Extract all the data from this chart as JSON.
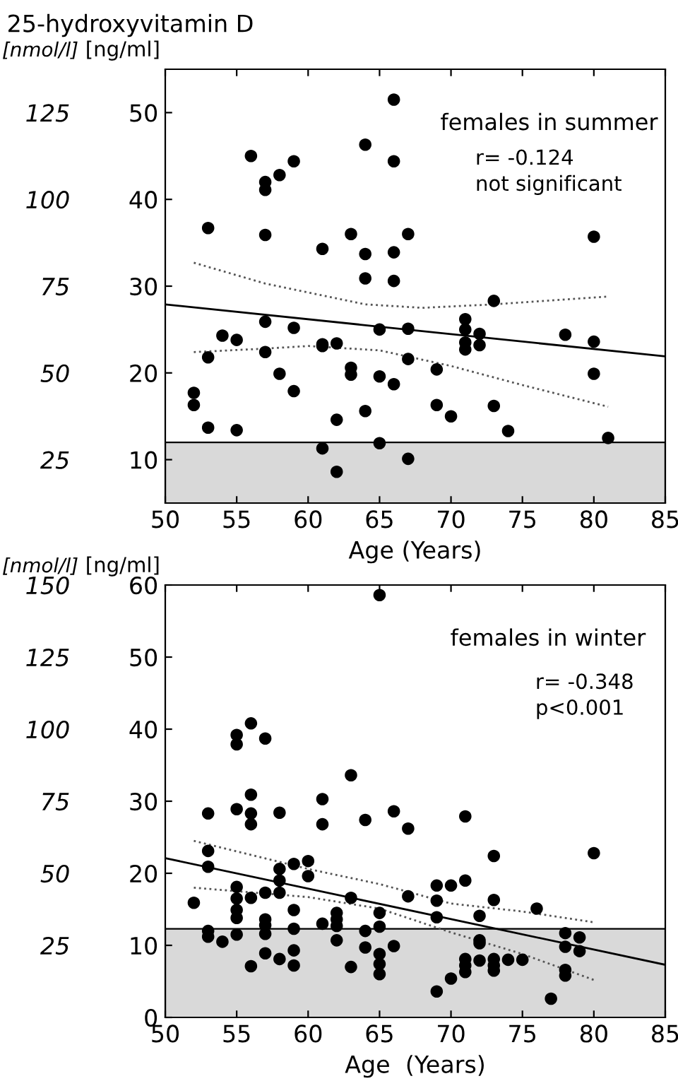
{
  "chart_data": [
    {
      "type": "scatter",
      "title": "25-hydroxyvitamin D",
      "xlabel": "Age (Years)",
      "ylabel": "[ng/ml]",
      "y2label": "[nmol/l]",
      "xlim": [
        50,
        85
      ],
      "xticks": [
        50,
        55,
        60,
        65,
        70,
        75,
        80,
        85
      ],
      "ylim": [
        5,
        55
      ],
      "yticks": [
        10,
        20,
        30,
        40,
        50
      ],
      "y2lim": [
        12.5,
        137.5
      ],
      "y2ticks": [
        25,
        50,
        75,
        100,
        125
      ],
      "grid": false,
      "legend": false,
      "annotations": [
        "females in summer",
        "r= -0.124",
        "not significant"
      ],
      "bands": [
        {
          "axis": "y",
          "from": 5,
          "to": 12,
          "color": "#d9d9d9"
        }
      ],
      "series": [
        {
          "color": "#000000",
          "marker": "circle",
          "x": [
            66,
            64,
            66,
            56,
            59,
            58,
            57,
            57,
            53,
            57,
            63,
            67,
            80,
            61,
            64,
            66,
            64,
            66,
            73,
            57,
            71,
            71,
            65,
            67,
            59,
            54,
            55,
            78,
            72,
            80,
            61,
            61,
            62,
            71,
            71,
            72,
            57,
            53,
            67,
            63,
            63,
            58,
            69,
            65,
            66,
            80,
            52,
            59,
            52,
            69,
            73,
            64,
            70,
            62,
            53,
            55,
            74,
            81,
            65,
            61,
            67,
            62
          ],
          "values": [
            51.5,
            46.3,
            44.4,
            45.0,
            44.4,
            42.8,
            42.0,
            41.1,
            36.7,
            35.9,
            36.0,
            36.0,
            35.7,
            34.3,
            33.7,
            33.9,
            30.9,
            30.6,
            28.3,
            25.9,
            26.2,
            25.0,
            25.0,
            25.1,
            25.2,
            24.3,
            23.8,
            24.4,
            24.5,
            23.6,
            23.3,
            23.1,
            23.4,
            23.5,
            22.7,
            23.2,
            22.4,
            21.8,
            21.6,
            20.6,
            19.8,
            19.9,
            20.4,
            19.6,
            18.7,
            19.9,
            17.7,
            17.9,
            16.3,
            16.3,
            16.2,
            15.6,
            15.0,
            14.6,
            13.7,
            13.4,
            13.3,
            12.5,
            11.9,
            11.3,
            10.1,
            8.6
          ]
        },
        {
          "type": "line",
          "color": "#000000",
          "line_style": "solid",
          "x": [
            50,
            85
          ],
          "values": [
            27.9,
            21.9
          ]
        },
        {
          "type": "line",
          "color": "#555555",
          "line_style": "dotted",
          "x": [
            52,
            57,
            64,
            68,
            73,
            81
          ],
          "values": [
            32.7,
            30.3,
            27.9,
            27.5,
            27.9,
            28.8
          ]
        },
        {
          "type": "line",
          "color": "#555555",
          "line_style": "dotted",
          "x": [
            52,
            57,
            60,
            65,
            70,
            75,
            81
          ],
          "values": [
            22.4,
            22.8,
            23.1,
            22.6,
            20.8,
            18.6,
            16.1
          ]
        }
      ]
    },
    {
      "type": "scatter",
      "xlabel": "Age  (Years)",
      "ylabel": "[ng/ml]",
      "y2label": "[nmol/l]",
      "xlim": [
        50,
        85
      ],
      "xticks": [
        50,
        55,
        60,
        65,
        70,
        75,
        80,
        85
      ],
      "ylim": [
        0,
        60
      ],
      "yticks": [
        0,
        10,
        20,
        30,
        40,
        50,
        60
      ],
      "y2lim": [
        0,
        150
      ],
      "y2ticks": [
        25,
        50,
        75,
        100,
        125,
        150
      ],
      "grid": false,
      "legend": false,
      "annotations": [
        "females in winter",
        "r= -0.348",
        "p<0.001"
      ],
      "bands": [
        {
          "axis": "y",
          "from": 0,
          "to": 12.3,
          "color": "#d9d9d9"
        }
      ],
      "series": [
        {
          "color": "#000000",
          "marker": "circle",
          "x": [
            65,
            56,
            55,
            55,
            57,
            63,
            56,
            55,
            53,
            56,
            56,
            58,
            61,
            61,
            64,
            66,
            67,
            71,
            73,
            80,
            53,
            53,
            58,
            58,
            59,
            60,
            60,
            55,
            55,
            56,
            57,
            58,
            52,
            63,
            67,
            69,
            69,
            70,
            71,
            73,
            76,
            69,
            72,
            55,
            55,
            57,
            57,
            59,
            61,
            62,
            62,
            62,
            65,
            65,
            59,
            53,
            53,
            55,
            57,
            54,
            64,
            62,
            72,
            72,
            78,
            79,
            79,
            78,
            64,
            66,
            57,
            59,
            65,
            58,
            65,
            59,
            56,
            63,
            65,
            71,
            71,
            71,
            72,
            73,
            73,
            73,
            74,
            75,
            78,
            78,
            70,
            69,
            77
          ],
          "values": [
            58.6,
            40.8,
            39.2,
            37.9,
            38.7,
            33.6,
            30.9,
            28.9,
            28.3,
            28.3,
            26.8,
            28.4,
            30.3,
            26.8,
            27.4,
            28.6,
            26.2,
            27.9,
            22.4,
            22.8,
            23.1,
            20.9,
            20.6,
            19.0,
            21.3,
            21.7,
            19.6,
            18.1,
            16.5,
            16.6,
            17.3,
            17.3,
            15.9,
            16.6,
            16.8,
            18.3,
            16.2,
            18.3,
            19.0,
            16.3,
            15.1,
            13.9,
            14.1,
            14.9,
            13.8,
            13.6,
            12.8,
            14.9,
            13.0,
            14.5,
            13.6,
            12.7,
            14.5,
            12.6,
            12.3,
            12.0,
            11.2,
            11.5,
            11.6,
            10.5,
            12.0,
            10.7,
            10.7,
            10.3,
            11.7,
            11.1,
            9.2,
            9.8,
            9.7,
            9.9,
            8.9,
            9.3,
            8.8,
            8.1,
            7.4,
            7.2,
            7.1,
            7.0,
            6.0,
            8.1,
            7.2,
            6.3,
            7.9,
            8.1,
            7.2,
            6.5,
            8.0,
            8.0,
            6.6,
            5.8,
            5.4,
            3.6,
            2.6
          ]
        },
        {
          "type": "line",
          "color": "#000000",
          "line_style": "solid",
          "x": [
            50,
            85
          ],
          "values": [
            22.1,
            7.3
          ]
        },
        {
          "type": "line",
          "color": "#555555",
          "line_style": "dotted",
          "x": [
            52,
            60,
            65,
            70,
            75,
            80
          ],
          "values": [
            24.5,
            20.6,
            18.5,
            15.8,
            14.7,
            13.2
          ]
        },
        {
          "type": "line",
          "color": "#555555",
          "line_style": "dotted",
          "x": [
            52,
            60,
            65,
            70,
            75,
            80
          ],
          "values": [
            18.0,
            16.7,
            15.1,
            11.8,
            8.8,
            5.2
          ]
        }
      ]
    }
  ]
}
